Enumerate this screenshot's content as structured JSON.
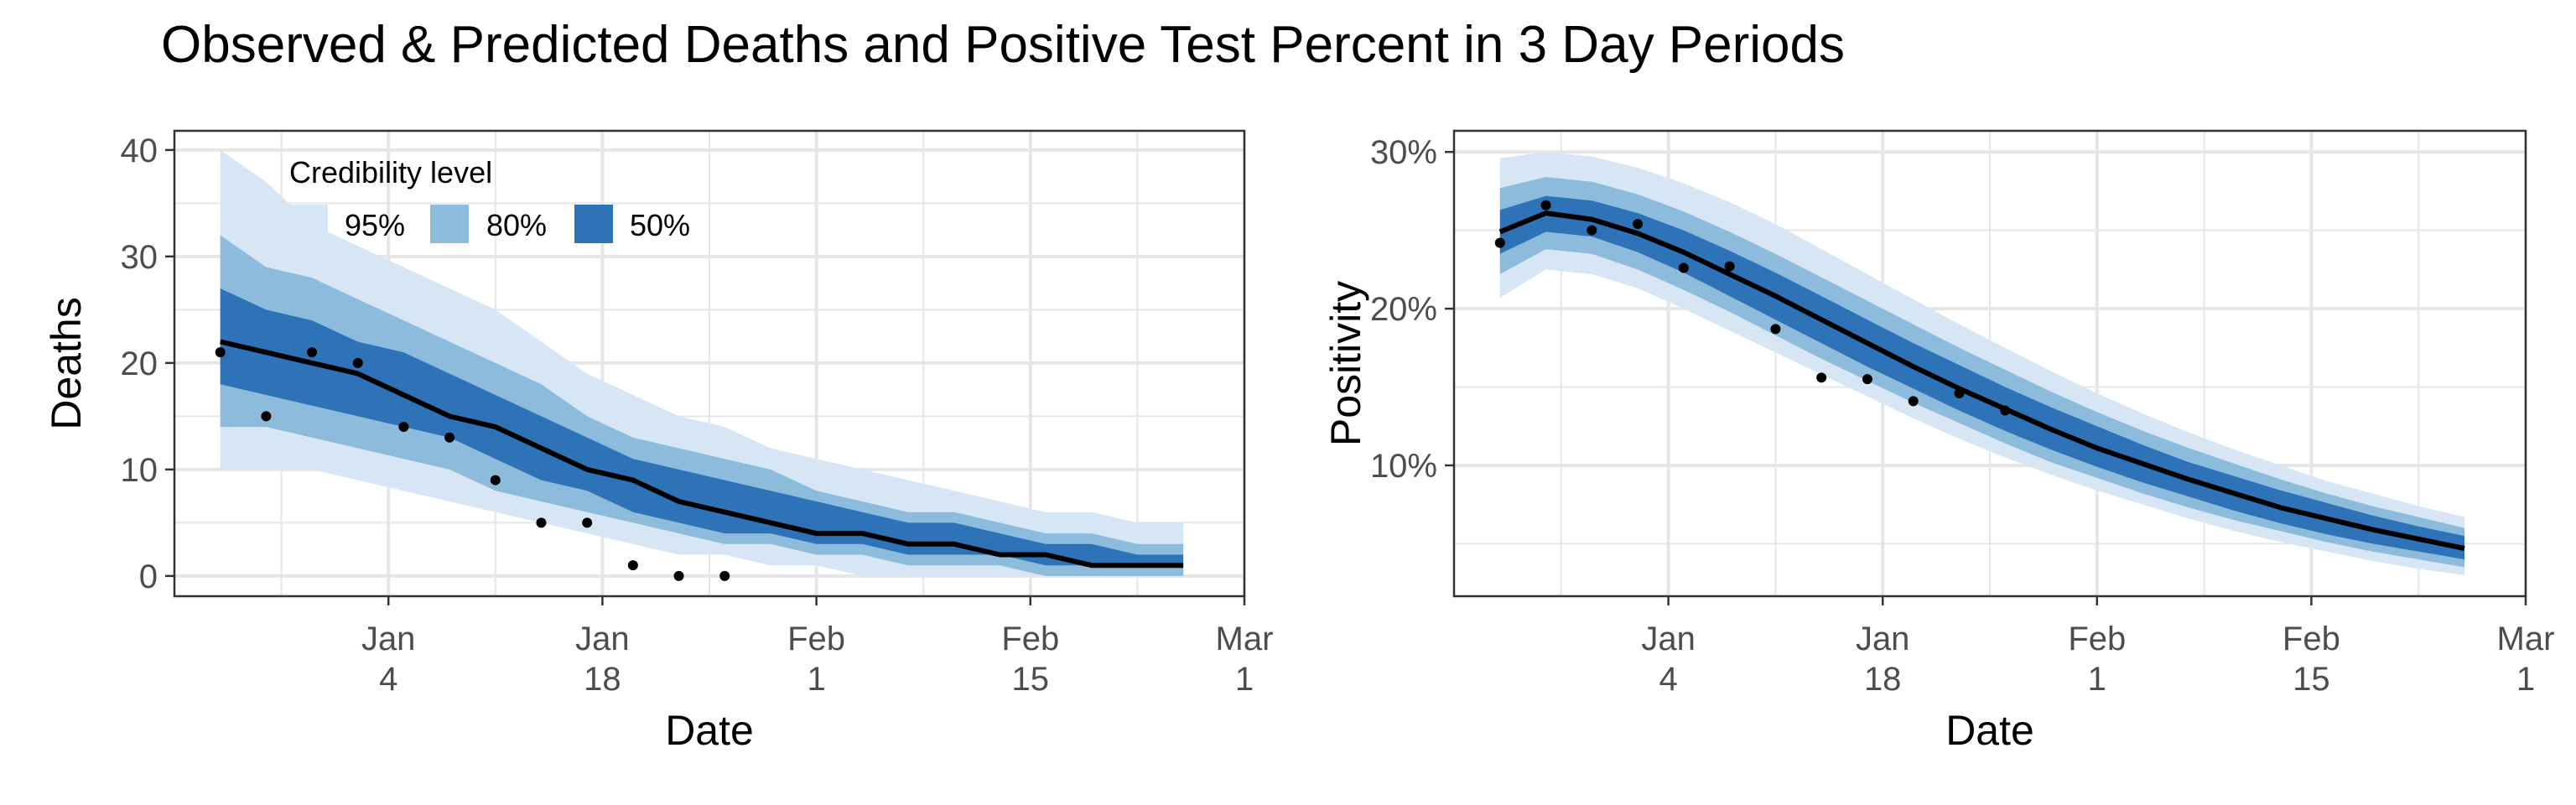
{
  "figure": {
    "title": "Observed & Predicted Deaths and Positive Test Percent in 3 Day Periods"
  },
  "colors": {
    "band_95": "#d6e6f5",
    "band_80": "#8dbbdb",
    "band_50": "#2e73b8",
    "median_line": "#000000",
    "points": "#000000",
    "grid": "#e6e6e6",
    "panel_border": "#333333",
    "tick_text": "#4d4d4d"
  },
  "chart_data": [
    {
      "type": "line",
      "xlabel": "Date",
      "ylabel": "Deaths",
      "xlim": [
        "2020-12-21",
        "2021-03-01"
      ],
      "ylim": [
        -1.9,
        41.8
      ],
      "x_ticks": [
        {
          "date": "2021-01-04",
          "line1": "Jan",
          "line2": "4"
        },
        {
          "date": "2021-01-18",
          "line1": "Jan",
          "line2": "18"
        },
        {
          "date": "2021-02-01",
          "line1": "Feb",
          "line2": "1"
        },
        {
          "date": "2021-02-15",
          "line1": "Feb",
          "line2": "15"
        },
        {
          "date": "2021-03-01",
          "line1": "Mar",
          "line2": "1"
        }
      ],
      "y_ticks": [
        {
          "value": 0,
          "label": "0"
        },
        {
          "value": 10,
          "label": "10"
        },
        {
          "value": 20,
          "label": "20"
        },
        {
          "value": 30,
          "label": "30"
        },
        {
          "value": 40,
          "label": "40"
        }
      ],
      "grid": true,
      "legend": {
        "title": "Credibility level",
        "placement": "top-left",
        "entries": [
          {
            "label": "95%",
            "color": "#d6e6f5"
          },
          {
            "label": "80%",
            "color": "#8dbbdb"
          },
          {
            "label": "50%",
            "color": "#2e73b8"
          }
        ]
      },
      "bands": {
        "x": [
          "2020-12-24",
          "2020-12-27",
          "2020-12-30",
          "2021-01-02",
          "2021-01-05",
          "2021-01-08",
          "2021-01-11",
          "2021-01-14",
          "2021-01-17",
          "2021-01-20",
          "2021-01-23",
          "2021-01-26",
          "2021-01-29",
          "2021-02-01",
          "2021-02-04",
          "2021-02-07",
          "2021-02-10",
          "2021-02-13",
          "2021-02-16",
          "2021-02-19",
          "2021-02-22",
          "2021-02-25"
        ],
        "lo95": [
          10,
          10,
          10,
          9,
          8,
          7,
          6,
          5,
          4,
          3,
          2,
          2,
          1,
          1,
          0,
          0,
          0,
          0,
          0,
          0,
          0,
          0
        ],
        "hi95": [
          40,
          37,
          33,
          31,
          29,
          27,
          25,
          22,
          19,
          17,
          15,
          14,
          12,
          11,
          10,
          9,
          8,
          7,
          6,
          6,
          5,
          5
        ],
        "lo80": [
          14,
          14,
          13,
          12,
          11,
          10,
          8,
          7,
          6,
          5,
          4,
          3,
          3,
          2,
          2,
          1,
          1,
          1,
          0,
          0,
          0,
          0
        ],
        "hi80": [
          32,
          29,
          28,
          26,
          24,
          22,
          20,
          18,
          15,
          13,
          12,
          11,
          10,
          8,
          7,
          6,
          6,
          5,
          4,
          4,
          3,
          3
        ],
        "lo50": [
          18,
          17,
          16,
          15,
          14,
          13,
          11,
          9,
          8,
          6,
          5,
          4,
          4,
          3,
          3,
          2,
          2,
          2,
          1,
          1,
          1,
          1
        ],
        "hi50": [
          27,
          25,
          24,
          22,
          21,
          19,
          17,
          15,
          13,
          11,
          10,
          9,
          8,
          7,
          6,
          5,
          5,
          4,
          3,
          3,
          2,
          2
        ],
        "median": [
          22,
          21,
          20,
          19,
          17,
          15,
          14,
          12,
          10,
          9,
          7,
          6,
          5,
          4,
          4,
          3,
          3,
          2,
          2,
          1,
          1,
          1
        ]
      },
      "observed": {
        "x": [
          "2020-12-24",
          "2020-12-27",
          "2020-12-30",
          "2021-01-02",
          "2021-01-05",
          "2021-01-08",
          "2021-01-11",
          "2021-01-14",
          "2021-01-17",
          "2021-01-20",
          "2021-01-23",
          "2021-01-26"
        ],
        "y": [
          21,
          15,
          21,
          20,
          14,
          13,
          9,
          5,
          5,
          1,
          0,
          0
        ]
      }
    },
    {
      "type": "line",
      "xlabel": "Date",
      "ylabel": "Positivity",
      "xlim": [
        "2020-12-21",
        "2021-03-01"
      ],
      "ylim": [
        0.0165,
        0.3135
      ],
      "x_ticks": [
        {
          "date": "2021-01-04",
          "line1": "Jan",
          "line2": "4"
        },
        {
          "date": "2021-01-18",
          "line1": "Jan",
          "line2": "18"
        },
        {
          "date": "2021-02-01",
          "line1": "Feb",
          "line2": "1"
        },
        {
          "date": "2021-02-15",
          "line1": "Feb",
          "line2": "15"
        },
        {
          "date": "2021-03-01",
          "line1": "Mar",
          "line2": "1"
        }
      ],
      "y_ticks": [
        {
          "value": 0.1,
          "label": "10%"
        },
        {
          "value": 0.2,
          "label": "20%"
        },
        {
          "value": 0.3,
          "label": "30%"
        }
      ],
      "grid": true,
      "bands": {
        "x": [
          "2020-12-24",
          "2020-12-27",
          "2020-12-30",
          "2021-01-02",
          "2021-01-05",
          "2021-01-08",
          "2021-01-11",
          "2021-01-14",
          "2021-01-17",
          "2021-01-20",
          "2021-01-23",
          "2021-01-26",
          "2021-01-29",
          "2021-02-01",
          "2021-02-04",
          "2021-02-07",
          "2021-02-10",
          "2021-02-13",
          "2021-02-16",
          "2021-02-19",
          "2021-02-22",
          "2021-02-25"
        ],
        "lo95": [
          0.207,
          0.225,
          0.222,
          0.213,
          0.2,
          0.186,
          0.172,
          0.158,
          0.144,
          0.13,
          0.117,
          0.105,
          0.094,
          0.084,
          0.075,
          0.066,
          0.058,
          0.051,
          0.045,
          0.039,
          0.034,
          0.03
        ],
        "hi95": [
          0.296,
          0.3,
          0.297,
          0.29,
          0.28,
          0.268,
          0.254,
          0.238,
          0.222,
          0.206,
          0.19,
          0.175,
          0.16,
          0.146,
          0.133,
          0.121,
          0.11,
          0.1,
          0.09,
          0.082,
          0.074,
          0.067
        ],
        "lo80": [
          0.222,
          0.238,
          0.235,
          0.225,
          0.212,
          0.198,
          0.183,
          0.168,
          0.154,
          0.14,
          0.127,
          0.114,
          0.102,
          0.092,
          0.082,
          0.073,
          0.065,
          0.058,
          0.051,
          0.045,
          0.04,
          0.035
        ],
        "hi80": [
          0.277,
          0.284,
          0.281,
          0.273,
          0.262,
          0.249,
          0.235,
          0.22,
          0.205,
          0.19,
          0.175,
          0.161,
          0.147,
          0.134,
          0.122,
          0.111,
          0.101,
          0.091,
          0.082,
          0.074,
          0.067,
          0.06
        ],
        "lo50": [
          0.235,
          0.249,
          0.246,
          0.236,
          0.223,
          0.208,
          0.193,
          0.178,
          0.163,
          0.149,
          0.135,
          0.122,
          0.11,
          0.099,
          0.089,
          0.08,
          0.071,
          0.063,
          0.056,
          0.05,
          0.045,
          0.04
        ],
        "hi50": [
          0.263,
          0.272,
          0.269,
          0.261,
          0.25,
          0.237,
          0.223,
          0.208,
          0.193,
          0.178,
          0.164,
          0.15,
          0.137,
          0.125,
          0.113,
          0.102,
          0.093,
          0.084,
          0.076,
          0.068,
          0.061,
          0.055
        ],
        "median": [
          0.249,
          0.261,
          0.257,
          0.248,
          0.236,
          0.222,
          0.208,
          0.193,
          0.178,
          0.163,
          0.149,
          0.136,
          0.123,
          0.111,
          0.101,
          0.091,
          0.082,
          0.073,
          0.066,
          0.059,
          0.053,
          0.047
        ]
      },
      "observed": {
        "x": [
          "2020-12-24",
          "2020-12-27",
          "2020-12-30",
          "2021-01-02",
          "2021-01-05",
          "2021-01-08",
          "2021-01-11",
          "2021-01-14",
          "2021-01-17",
          "2021-01-20",
          "2021-01-23",
          "2021-01-26"
        ],
        "y": [
          0.242,
          0.266,
          0.25,
          0.254,
          0.226,
          0.227,
          0.187,
          0.156,
          0.155,
          0.141,
          0.146,
          0.135
        ]
      }
    }
  ]
}
